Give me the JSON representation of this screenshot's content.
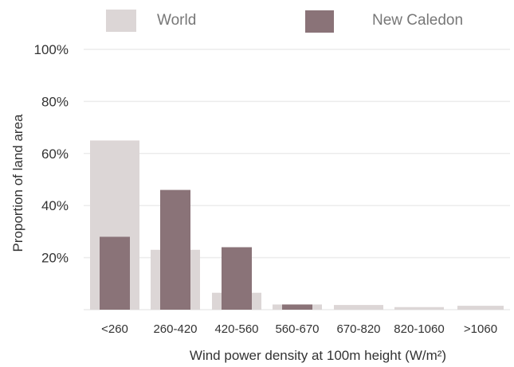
{
  "chart_data": {
    "type": "bar",
    "title": "",
    "xlabel": "Wind power density at 100m height (W/m²)",
    "ylabel": "Proportion of land area",
    "ylim": [
      0,
      100
    ],
    "yticks": [
      "100%",
      "80%",
      "60%",
      "40%",
      "20%"
    ],
    "grid": true,
    "legend_position": "top",
    "categories": [
      "<260",
      "260-420",
      "420-560",
      "560-670",
      "670-820",
      "820-1060",
      ">1060"
    ],
    "series": [
      {
        "name": "World",
        "color": "#dcd6d6",
        "values": [
          65,
          23,
          6.5,
          2,
          1.8,
          1,
          1.5
        ]
      },
      {
        "name": "New Caledon",
        "color": "#8a7378",
        "values": [
          28,
          46,
          24,
          2,
          0,
          0,
          0
        ]
      }
    ]
  }
}
